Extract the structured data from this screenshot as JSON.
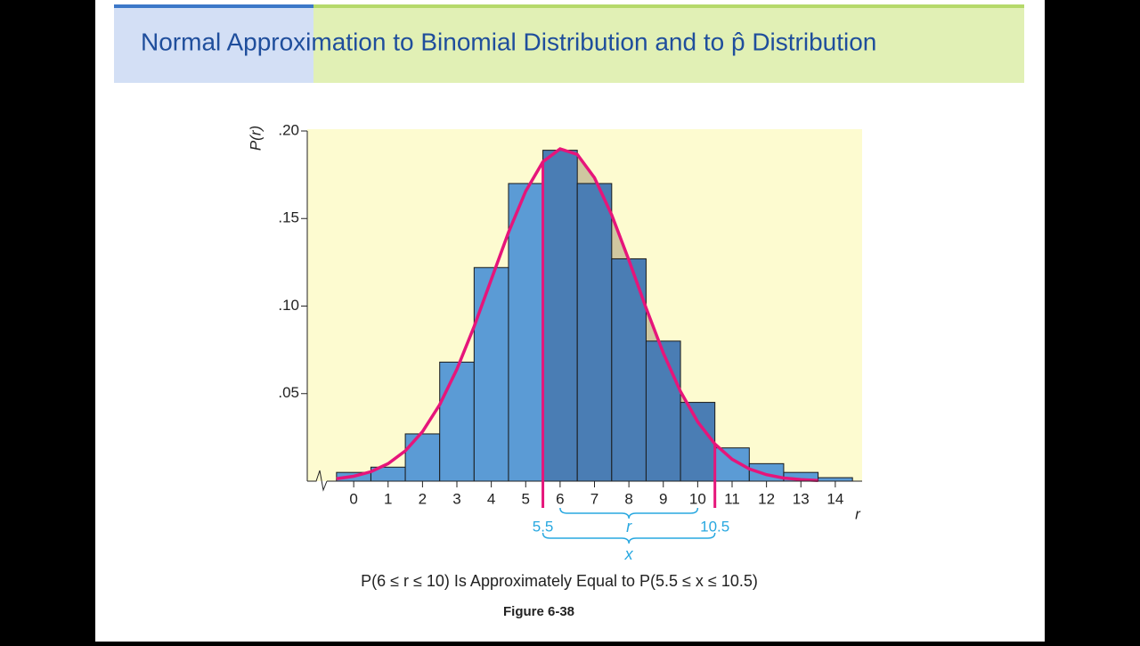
{
  "slide_title": "Normal Approximation to Binomial Distribution and to p̂ Distribution",
  "chart_data": {
    "type": "bar",
    "y_label": "P(r)",
    "x_label": "r",
    "x": [
      0,
      1,
      2,
      3,
      4,
      5,
      6,
      7,
      8,
      9,
      10,
      11,
      12,
      13,
      14
    ],
    "values": [
      0.005,
      0.008,
      0.027,
      0.068,
      0.122,
      0.17,
      0.189,
      0.17,
      0.127,
      0.08,
      0.045,
      0.019,
      0.01,
      0.005,
      0.002
    ],
    "color": "#5b9bd5",
    "highlight_color": "#4a7db4",
    "curve": {
      "color": "#e6157a",
      "x": [
        -0.5,
        0,
        0.5,
        1,
        1.5,
        2,
        2.5,
        3,
        3.5,
        4,
        4.5,
        5,
        5.5,
        6,
        6.5,
        7,
        7.5,
        8,
        8.5,
        9,
        9.5,
        10,
        10.5,
        11,
        11.5,
        12,
        12.5,
        13,
        13.5
      ],
      "values": [
        0.0014,
        0.0028,
        0.0054,
        0.01,
        0.0173,
        0.0283,
        0.0437,
        0.0639,
        0.0883,
        0.1152,
        0.1421,
        0.1656,
        0.1824,
        0.1898,
        0.1866,
        0.1733,
        0.1521,
        0.1262,
        0.0989,
        0.0732,
        0.0512,
        0.0339,
        0.0212,
        0.0125,
        0.007,
        0.0037,
        0.0018,
        0.0009,
        0.0004
      ]
    },
    "reference_lines": [
      {
        "value": 5.5,
        "label": "5.5"
      },
      {
        "value": 10.5,
        "label": "10.5"
      }
    ],
    "brace_labels": [
      "r",
      "x"
    ],
    "xlim": [
      -1.35,
      14.78
    ],
    "xticks": [
      0,
      1,
      2,
      3,
      4,
      5,
      6,
      7,
      8,
      9,
      10,
      11,
      12,
      13,
      14
    ],
    "ylim": [
      0,
      0.2
    ],
    "yticks": [
      {
        "value": 0.05,
        "label": ".05"
      },
      {
        "value": 0.1,
        "label": ".10"
      },
      {
        "value": 0.15,
        "label": ".15"
      },
      {
        "value": 0.2,
        "label": ".20"
      }
    ],
    "caption": "P(6 ≤  r ≤ 10) Is Approximately Equal to P(5.5 ≤  x ≤ 10.5)",
    "figure_label": "Figure 6-38"
  }
}
